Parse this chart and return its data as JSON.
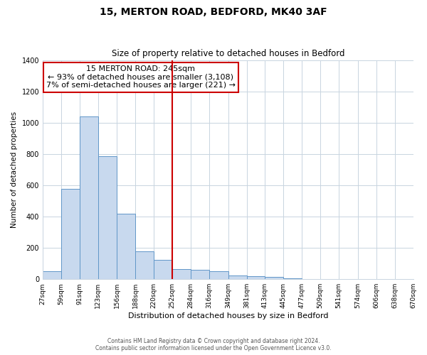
{
  "title": "15, MERTON ROAD, BEDFORD, MK40 3AF",
  "subtitle": "Size of property relative to detached houses in Bedford",
  "xlabel": "Distribution of detached houses by size in Bedford",
  "ylabel": "Number of detached properties",
  "bar_color": "#c8d9ee",
  "bar_edge_color": "#6096c8",
  "vline_x": 252,
  "vline_color": "#cc0000",
  "bins": [
    27,
    59,
    91,
    123,
    156,
    188,
    220,
    252,
    284,
    316,
    349,
    381,
    413,
    445,
    477,
    509,
    541,
    574,
    606,
    638,
    670
  ],
  "bin_labels": [
    "27sqm",
    "59sqm",
    "91sqm",
    "123sqm",
    "156sqm",
    "188sqm",
    "220sqm",
    "252sqm",
    "284sqm",
    "316sqm",
    "349sqm",
    "381sqm",
    "413sqm",
    "445sqm",
    "477sqm",
    "509sqm",
    "541sqm",
    "574sqm",
    "606sqm",
    "638sqm",
    "670sqm"
  ],
  "counts": [
    50,
    575,
    1040,
    785,
    420,
    180,
    125,
    65,
    60,
    50,
    25,
    20,
    15,
    5,
    0,
    0,
    0,
    0,
    0,
    0
  ],
  "ylim": [
    0,
    1400
  ],
  "yticks": [
    0,
    200,
    400,
    600,
    800,
    1000,
    1200,
    1400
  ],
  "annotation_title": "15 MERTON ROAD: 245sqm",
  "annotation_line1": "← 93% of detached houses are smaller (3,108)",
  "annotation_line2": "7% of semi-detached houses are larger (221) →",
  "annotation_box_color": "#ffffff",
  "annotation_box_edge": "#cc0000",
  "footer1": "Contains HM Land Registry data © Crown copyright and database right 2024.",
  "footer2": "Contains public sector information licensed under the Open Government Licence v3.0.",
  "background_color": "#ffffff",
  "grid_color": "#c8d4e0"
}
